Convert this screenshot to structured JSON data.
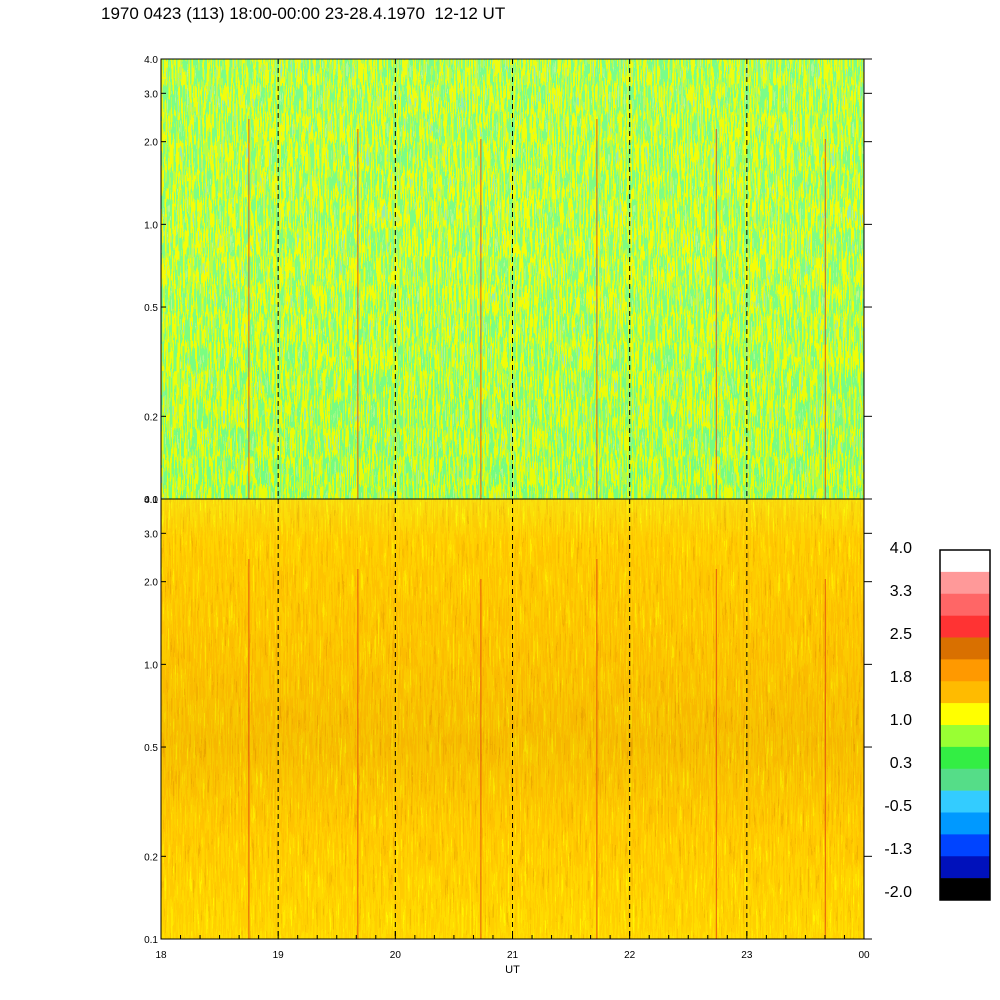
{
  "title": "1970 0423 (113) 18:00-00:00 23-28.4.1970  12-12 UT",
  "chart_data": {
    "type": "heatmap",
    "xlabel": "UT",
    "x_ticks": [
      "18",
      "19",
      "20",
      "21",
      "22",
      "23",
      "00"
    ],
    "x_range_hours": [
      18,
      24
    ],
    "y_scale": "log",
    "y_range": [
      0.1,
      4.0
    ],
    "y_ticks": [
      "4.0",
      "3.0",
      "2.0",
      "1.0",
      "0.5",
      "0.2",
      "0.1"
    ],
    "y_tick_values": [
      4.0,
      3.0,
      2.0,
      1.0,
      0.5,
      0.2,
      0.1
    ],
    "panels": [
      {
        "name": "upper",
        "dominant_level": 0.3,
        "description_values": [
          0.3,
          1.0
        ]
      },
      {
        "name": "lower",
        "dominant_level": 1.8,
        "description_values": [
          1.0,
          2.5
        ]
      }
    ],
    "grid": "dashed vertical lines at each hour",
    "colorbar": {
      "labels": [
        "4.0",
        "3.3",
        "2.5",
        "1.8",
        "1.0",
        "0.3",
        "-0.5",
        "-1.3",
        "-2.0"
      ],
      "colors": [
        "#ffffff",
        "#ff9999",
        "#ff6666",
        "#ff3333",
        "#d97000",
        "#ff9900",
        "#ffbb00",
        "#ffff00",
        "#99ff33",
        "#33ee44",
        "#55dd88",
        "#33ccff",
        "#0099ff",
        "#0044ff",
        "#0011bb",
        "#000000"
      ]
    }
  }
}
